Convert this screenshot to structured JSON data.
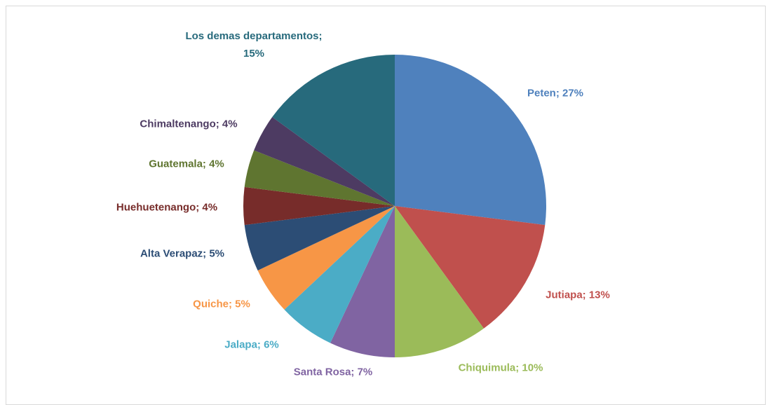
{
  "chart_data": {
    "type": "pie",
    "values": [
      27,
      13,
      10,
      7,
      6,
      5,
      5,
      4,
      4,
      4,
      15
    ],
    "value_labels": [
      "Peten; 27%",
      "Jutiapa; 13%",
      "Chiquimula; 10%",
      "Santa Rosa; 7%",
      "Jalapa; 6%",
      "Quiche; 5%",
      "Alta Verapaz; 5%",
      "Huehuetenango; 4%",
      "Guatemala; 4%",
      "Chimaltenango; 4%",
      "Los demas departamentos; 15%"
    ],
    "colors": [
      "#4f81bd",
      "#c0504d",
      "#9bbb59",
      "#8064a2",
      "#4bacc6",
      "#f79646",
      "#2c4d75",
      "#772c2a",
      "#5f7530",
      "#4d3b62",
      "#276a7c"
    ]
  }
}
